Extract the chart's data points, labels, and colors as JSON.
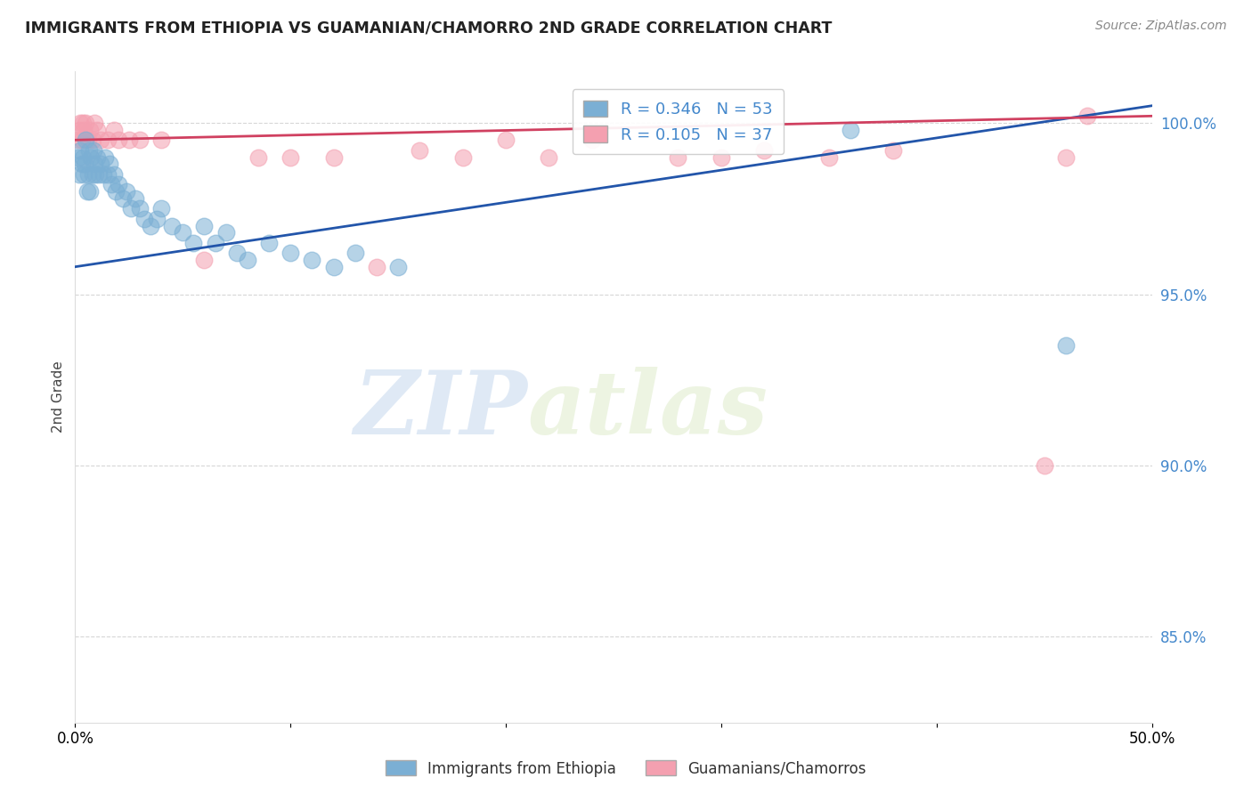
{
  "title": "IMMIGRANTS FROM ETHIOPIA VS GUAMANIAN/CHAMORRO 2ND GRADE CORRELATION CHART",
  "source": "Source: ZipAtlas.com",
  "ylabel": "2nd Grade",
  "y_ticks": [
    85.0,
    90.0,
    95.0,
    100.0
  ],
  "y_tick_labels": [
    "85.0%",
    "90.0%",
    "95.0%",
    "100.0%"
  ],
  "x_min": 0.0,
  "x_max": 50.0,
  "y_min": 82.5,
  "y_max": 101.5,
  "blue_R": 0.346,
  "blue_N": 53,
  "pink_R": 0.105,
  "pink_N": 37,
  "blue_color": "#7bafd4",
  "pink_color": "#f4a0b0",
  "blue_line_color": "#2255aa",
  "pink_line_color": "#d04060",
  "legend_label_blue": "Immigrants from Ethiopia",
  "legend_label_pink": "Guamanians/Chamorros",
  "watermark_zip": "ZIP",
  "watermark_atlas": "atlas",
  "blue_line_y0": 95.8,
  "blue_line_y1": 100.5,
  "pink_line_y0": 99.5,
  "pink_line_y1": 100.2,
  "blue_x": [
    0.15,
    0.2,
    0.25,
    0.3,
    0.35,
    0.4,
    0.45,
    0.5,
    0.55,
    0.6,
    0.65,
    0.7,
    0.75,
    0.8,
    0.85,
    0.9,
    0.95,
    1.0,
    1.1,
    1.2,
    1.3,
    1.4,
    1.5,
    1.6,
    1.7,
    1.8,
    1.9,
    2.0,
    2.2,
    2.4,
    2.6,
    2.8,
    3.0,
    3.2,
    3.5,
    3.8,
    4.0,
    4.5,
    5.0,
    5.5,
    6.0,
    6.5,
    7.0,
    7.5,
    8.0,
    9.0,
    10.0,
    11.0,
    12.0,
    13.0,
    15.0,
    36.0,
    46.0
  ],
  "blue_y": [
    99.0,
    98.5,
    99.2,
    98.8,
    99.0,
    98.5,
    98.8,
    99.5,
    98.0,
    98.5,
    99.2,
    98.0,
    99.0,
    98.5,
    99.2,
    98.8,
    98.5,
    99.0,
    98.5,
    98.8,
    98.5,
    99.0,
    98.5,
    98.8,
    98.2,
    98.5,
    98.0,
    98.2,
    97.8,
    98.0,
    97.5,
    97.8,
    97.5,
    97.2,
    97.0,
    97.2,
    97.5,
    97.0,
    96.8,
    96.5,
    97.0,
    96.5,
    96.8,
    96.2,
    96.0,
    96.5,
    96.2,
    96.0,
    95.8,
    96.2,
    95.8,
    99.8,
    93.5
  ],
  "pink_x": [
    0.15,
    0.2,
    0.25,
    0.3,
    0.35,
    0.4,
    0.5,
    0.6,
    0.7,
    0.8,
    0.9,
    1.0,
    1.2,
    1.5,
    1.8,
    2.0,
    2.5,
    3.0,
    4.0,
    6.0,
    8.5,
    10.0,
    12.0,
    14.0,
    16.0,
    18.0,
    20.0,
    22.0,
    24.0,
    28.0,
    30.0,
    32.0,
    35.0,
    38.0,
    45.0,
    46.0,
    47.0
  ],
  "pink_y": [
    99.5,
    99.8,
    100.0,
    99.5,
    100.0,
    99.8,
    100.0,
    99.5,
    99.8,
    99.5,
    100.0,
    99.8,
    99.5,
    99.5,
    99.8,
    99.5,
    99.5,
    99.5,
    99.5,
    96.0,
    99.0,
    99.0,
    99.0,
    95.8,
    99.2,
    99.0,
    99.5,
    99.0,
    99.5,
    99.0,
    99.0,
    99.2,
    99.0,
    99.2,
    90.0,
    99.0,
    100.2
  ]
}
